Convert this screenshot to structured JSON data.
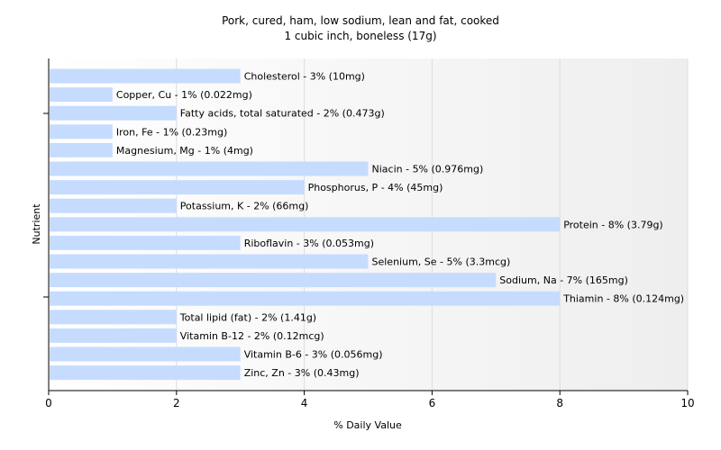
{
  "chart_data": {
    "type": "bar",
    "orientation": "horizontal",
    "title": [
      "Pork, cured, ham, low sodium, lean and fat, cooked",
      "1 cubic inch, boneless (17g)"
    ],
    "xlabel": "% Daily Value",
    "ylabel": "Nutrient",
    "xlim": [
      0,
      10
    ],
    "xticks": [
      0,
      2,
      4,
      6,
      8,
      10
    ],
    "grid": true,
    "bar_color": "#c6dcff",
    "categories": [
      "Cholesterol",
      "Copper, Cu",
      "Fatty acids, total saturated",
      "Iron, Fe",
      "Magnesium, Mg",
      "Niacin",
      "Phosphorus, P",
      "Potassium, K",
      "Protein",
      "Riboflavin",
      "Selenium, Se",
      "Sodium, Na",
      "Thiamin",
      "Total lipid (fat)",
      "Vitamin B-12",
      "Vitamin B-6",
      "Zinc, Zn"
    ],
    "values": [
      3,
      1,
      2,
      1,
      1,
      5,
      4,
      2,
      8,
      3,
      5,
      7,
      8,
      2,
      2,
      3,
      3
    ],
    "labels": [
      "Cholesterol - 3% (10mg)",
      "Copper, Cu - 1% (0.022mg)",
      "Fatty acids, total saturated - 2% (0.473g)",
      "Iron, Fe - 1% (0.23mg)",
      "Magnesium, Mg - 1% (4mg)",
      "Niacin - 5% (0.976mg)",
      "Phosphorus, P - 4% (45mg)",
      "Potassium, K - 2% (66mg)",
      "Protein - 8% (3.79g)",
      "Riboflavin - 3% (0.053mg)",
      "Selenium, Se - 5% (3.3mcg)",
      "Sodium, Na - 7% (165mg)",
      "Thiamin - 8% (0.124mg)",
      "Total lipid (fat) - 2% (1.41g)",
      "Vitamin B-12 - 2% (0.12mcg)",
      "Vitamin B-6 - 3% (0.056mg)",
      "Zinc, Zn - 3% (0.43mg)"
    ]
  }
}
